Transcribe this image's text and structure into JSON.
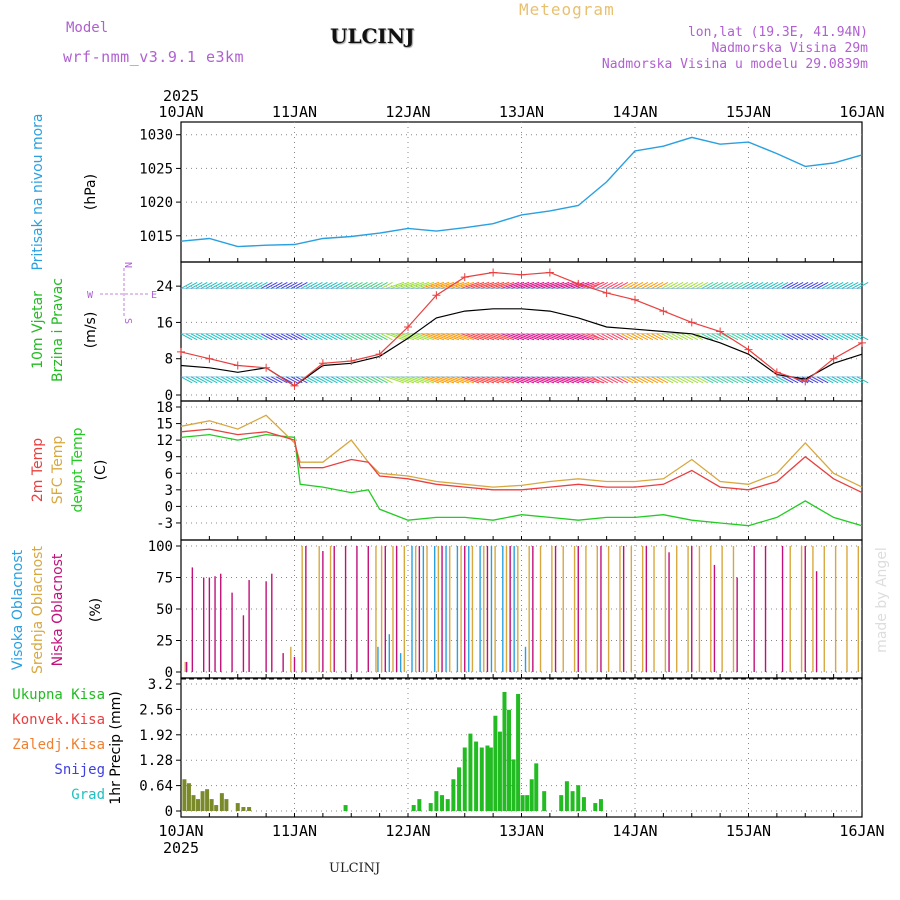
{
  "header": {
    "model_label": "Model",
    "model_name": "wrf-nmm_v3.9.1 e3km",
    "station": "ULCINJ",
    "title": "Meteogram",
    "lonlat": "lon,lat (19.3E, 41.94N)",
    "elevation": "Nadmorska Visina 29m",
    "model_elevation": "Nadmorska Visina u modelu 29.0839m",
    "watermark": "made by Angel",
    "footer_station": "ULCINJ"
  },
  "colors": {
    "pressure": "#2aa0e0",
    "wind_label": "#22bb22",
    "wind_speed": "#e84040",
    "wind_gust": "#000000",
    "temp2m": "#e84040",
    "sfc": "#d8a840",
    "dew": "#22cc22",
    "cloud_high": "#2aa0e0",
    "cloud_mid": "#d8a840",
    "cloud_low": "#c0107a",
    "precip_total": "#22bb22",
    "precip_conv": "#e84040",
    "precip_frz": "#f08030",
    "precip_snow": "#4040e0",
    "precip_grad": "#20c0c0",
    "title_orange": "#e8c070",
    "purple": "#b060d0"
  },
  "chart_data": [
    {
      "id": "pressure",
      "type": "line",
      "title": "",
      "ylabel": "Pritisak na nivou mora",
      "unit": "(hPa)",
      "ylim": [
        1012,
        1031
      ],
      "yticks": [
        1015,
        1020,
        1025,
        1030
      ],
      "x": [
        0,
        0.25,
        0.5,
        0.75,
        1,
        1.25,
        1.5,
        1.75,
        2,
        2.25,
        2.5,
        2.75,
        3,
        3.25,
        3.5,
        3.75,
        4,
        4.25,
        4.5,
        4.75,
        5,
        5.25,
        5.5,
        5.75,
        6
      ],
      "values": [
        1014.2,
        1014.6,
        1013.4,
        1013.6,
        1013.7,
        1014.6,
        1014.9,
        1015.4,
        1016.1,
        1015.7,
        1016.2,
        1016.8,
        1018.1,
        1018.7,
        1019.5,
        1023.0,
        1027.6,
        1028.3,
        1029.6,
        1028.6,
        1028.9,
        1027.2,
        1025.3,
        1025.8,
        1027.0
      ],
      "series_label": "Pritisak na nivou mora"
    },
    {
      "id": "wind",
      "type": "line",
      "ylabel_1": "10m Vjetar",
      "ylabel_2": "Brzina i Pravac",
      "unit": "(m/s)",
      "ylim": [
        0,
        28
      ],
      "yticks": [
        0,
        8,
        16,
        24
      ],
      "compass": {
        "north": "N",
        "south": "S",
        "west": "W",
        "east": "E"
      },
      "x": [
        0,
        0.25,
        0.5,
        0.75,
        1,
        1.25,
        1.5,
        1.75,
        2,
        2.25,
        2.5,
        2.75,
        3,
        3.25,
        3.5,
        3.75,
        4,
        4.25,
        4.5,
        4.75,
        5,
        5.25,
        5.5,
        5.75,
        6
      ],
      "series": [
        {
          "name": "speed",
          "values": [
            9.5,
            8.0,
            6.5,
            6.0,
            2.0,
            7.0,
            7.5,
            9.0,
            15.0,
            22.0,
            26.0,
            27.0,
            26.5,
            27.0,
            24.5,
            22.5,
            21.0,
            18.5,
            16.0,
            14.0,
            10.0,
            5.0,
            3.0,
            8.0,
            11.5
          ]
        },
        {
          "name": "gust",
          "values": [
            6.5,
            6.0,
            5.0,
            6.0,
            2.0,
            6.5,
            7.0,
            8.5,
            12.5,
            17.0,
            18.5,
            19.0,
            19.0,
            18.5,
            17.0,
            15.0,
            14.5,
            14.0,
            13.5,
            11.5,
            9.0,
            4.5,
            3.5,
            7.0,
            9.0
          ]
        }
      ],
      "barb_rows": [
        4,
        13.5,
        23.5
      ]
    },
    {
      "id": "temperature",
      "type": "line",
      "ylabel_1": "2m Temp",
      "ylabel_2": "SFC Temp",
      "ylabel_3": "dewpt Temp",
      "unit": "(C)",
      "ylim": [
        -5,
        18
      ],
      "yticks": [
        -3,
        0,
        3,
        6,
        9,
        12,
        15,
        18
      ],
      "x": [
        0,
        0.25,
        0.5,
        0.75,
        1,
        1.05,
        1.25,
        1.5,
        1.65,
        1.75,
        2,
        2.25,
        2.5,
        2.75,
        3,
        3.25,
        3.5,
        3.75,
        4,
        4.25,
        4.5,
        4.75,
        5,
        5.25,
        5.5,
        5.75,
        6
      ],
      "series": [
        {
          "name": "2m Temp",
          "values": [
            13.5,
            14.0,
            13.0,
            13.5,
            12.0,
            7.0,
            7.0,
            8.5,
            8.0,
            5.5,
            5.0,
            4.0,
            3.5,
            3.0,
            3.0,
            3.5,
            4.0,
            3.5,
            3.5,
            4.0,
            6.5,
            3.5,
            3.0,
            4.5,
            9.0,
            5.0,
            2.5
          ]
        },
        {
          "name": "SFC Temp",
          "values": [
            14.5,
            15.5,
            14.0,
            16.5,
            11.5,
            8.0,
            8.0,
            12.0,
            8.0,
            6.0,
            5.5,
            4.5,
            4.0,
            3.5,
            3.8,
            4.5,
            5.0,
            4.5,
            4.5,
            5.0,
            8.5,
            4.5,
            4.0,
            6.0,
            11.5,
            6.0,
            3.5
          ]
        },
        {
          "name": "dewpt Temp",
          "values": [
            12.5,
            13.0,
            12.0,
            13.0,
            12.5,
            4.0,
            3.5,
            2.5,
            3.0,
            -0.5,
            -2.5,
            -2.0,
            -2.0,
            -2.5,
            -1.5,
            -2.0,
            -2.5,
            -2.0,
            -2.0,
            -1.5,
            -2.5,
            -3.0,
            -3.5,
            -2.0,
            1.0,
            -2.0,
            -3.5
          ]
        }
      ]
    },
    {
      "id": "cloud",
      "type": "bar",
      "ylabel_1": "Visoka Oblacnost",
      "ylabel_2": "Srednja Oblacnost",
      "ylabel_3": "Niska Oblacnost",
      "unit": "(%)",
      "ylim": [
        0,
        100
      ],
      "yticks": [
        0,
        25,
        50,
        75,
        100
      ],
      "series": [
        {
          "name": "Niska Oblacnost",
          "x": [
            0.05,
            0.1,
            0.2,
            0.25,
            0.3,
            0.35,
            0.45,
            0.55,
            0.6,
            0.75,
            0.8,
            0.9,
            1.0,
            1.1,
            1.25,
            1.35,
            1.45,
            1.55,
            1.65,
            1.8,
            1.9,
            2.1,
            2.3,
            2.5,
            2.7,
            2.9,
            3.1,
            3.3,
            3.5,
            3.7,
            3.9,
            4.1,
            4.3,
            4.5,
            4.7,
            4.9,
            5.05,
            5.15,
            5.3,
            5.5,
            5.6
          ],
          "values": [
            8,
            83,
            75,
            75,
            76,
            78,
            63,
            45,
            73,
            72,
            78,
            15,
            12,
            100,
            96,
            100,
            100,
            100,
            100,
            100,
            100,
            100,
            100,
            100,
            100,
            100,
            100,
            100,
            100,
            100,
            100,
            100,
            95,
            100,
            85,
            75,
            100,
            100,
            100,
            100,
            80
          ]
        },
        {
          "name": "Srednja Oblacnost",
          "x": [
            0.02,
            0.95,
            1.05,
            1.2,
            1.3,
            1.7,
            1.75,
            1.85,
            1.95,
            2.05,
            2.15,
            2.25,
            2.35,
            2.45,
            2.55,
            2.65,
            2.75,
            2.85,
            2.95,
            3.05,
            3.15,
            3.25,
            3.35,
            3.45,
            3.55,
            3.65,
            3.75,
            3.85,
            3.95,
            4.05,
            4.15,
            4.25,
            4.35,
            4.45,
            4.55,
            4.65,
            4.75,
            4.85,
            5.35,
            5.45,
            5.55,
            5.65,
            5.75,
            5.85,
            5.95
          ],
          "values": [
            8,
            20,
            100,
            100,
            100,
            100,
            100,
            100,
            100,
            100,
            100,
            100,
            100,
            100,
            100,
            100,
            100,
            100,
            100,
            100,
            100,
            100,
            100,
            100,
            100,
            100,
            100,
            100,
            100,
            100,
            100,
            100,
            100,
            100,
            100,
            100,
            100,
            100,
            100,
            100,
            100,
            100,
            100,
            100,
            100
          ]
        },
        {
          "name": "Visoka Oblacnost",
          "x": [
            1.7,
            1.8,
            1.9,
            2.0,
            2.1,
            2.2,
            2.3,
            2.4,
            2.5,
            2.6,
            2.7,
            2.8,
            2.9,
            3.0
          ],
          "values": [
            20,
            30,
            15,
            100,
            100,
            100,
            100,
            100,
            100,
            100,
            100,
            100,
            100,
            20
          ]
        }
      ]
    },
    {
      "id": "precip",
      "type": "bar",
      "ylabel": "1hr Precip (mm)",
      "legend": [
        "Ukupna Kisa",
        "Konvek.Kisa",
        "Zaledj.Kisa",
        "Snijeg",
        "Grad"
      ],
      "ylim": [
        0,
        3.2
      ],
      "yticks": [
        0,
        0.64,
        1.28,
        1.92,
        2.56,
        3.2
      ],
      "x": [
        0.03,
        0.07,
        0.11,
        0.15,
        0.19,
        0.23,
        0.27,
        0.31,
        0.36,
        0.4,
        0.5,
        0.55,
        0.6,
        1.45,
        2.05,
        2.1,
        2.2,
        2.25,
        2.3,
        2.35,
        2.4,
        2.45,
        2.5,
        2.55,
        2.6,
        2.65,
        2.7,
        2.73,
        2.77,
        2.81,
        2.85,
        2.89,
        2.93,
        2.97,
        3.01,
        3.05,
        3.09,
        3.13,
        3.2,
        3.35,
        3.4,
        3.45,
        3.5,
        3.55,
        3.65,
        3.7
      ],
      "values": [
        0.8,
        0.7,
        0.4,
        0.3,
        0.5,
        0.55,
        0.3,
        0.15,
        0.45,
        0.3,
        0.2,
        0.1,
        0.1,
        0.15,
        0.15,
        0.3,
        0.2,
        0.5,
        0.4,
        0.3,
        0.8,
        1.1,
        1.6,
        1.95,
        1.75,
        1.6,
        1.65,
        1.6,
        2.4,
        2.0,
        3.0,
        2.55,
        1.3,
        2.95,
        0.4,
        0.4,
        0.8,
        1.2,
        0.5,
        0.4,
        0.75,
        0.5,
        0.65,
        0.35,
        0.2,
        0.3
      ],
      "colored_x_max": 0.7
    }
  ],
  "axis": {
    "year": "2025",
    "labels": [
      "10JAN",
      "11JAN",
      "12JAN",
      "13JAN",
      "14JAN",
      "15JAN",
      "16JAN"
    ]
  }
}
